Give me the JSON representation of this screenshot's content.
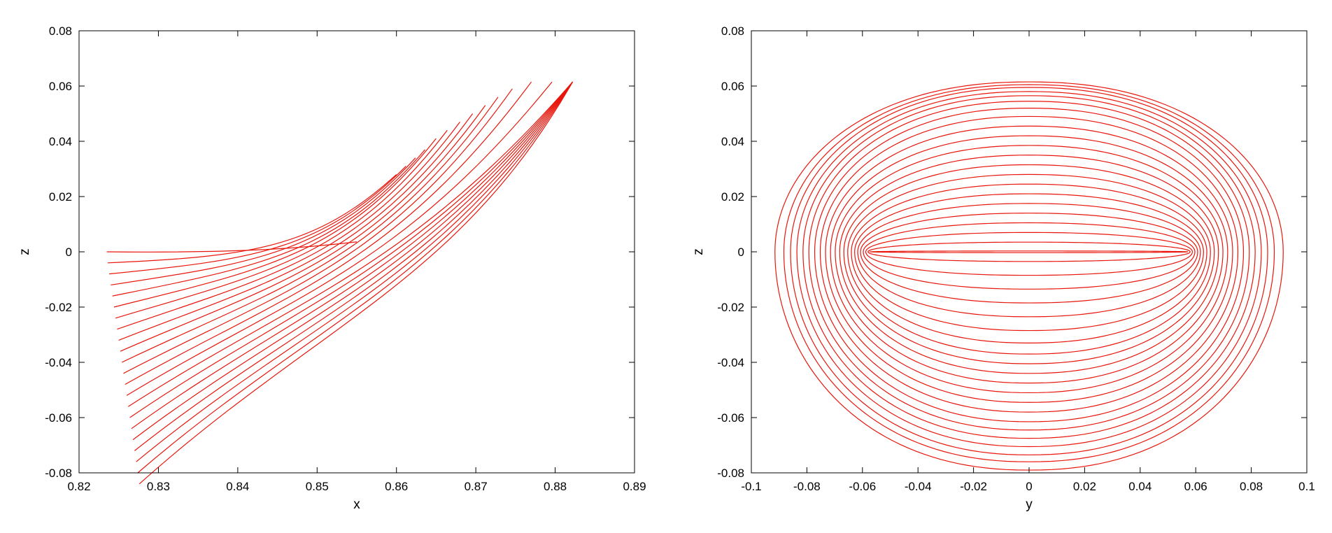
{
  "chart_data": [
    {
      "type": "line",
      "xlabel": "x",
      "ylabel": "z",
      "xlim": [
        0.82,
        0.89
      ],
      "ylim": [
        -0.08,
        0.08
      ],
      "xticks": [
        "0.82",
        "0.83",
        "0.84",
        "0.85",
        "0.86",
        "0.87",
        "0.88",
        "0.89"
      ],
      "yticks": [
        "-0.08",
        "-0.06",
        "-0.04",
        "-0.02",
        "0",
        "0.02",
        "0.04",
        "0.06",
        "0.08"
      ],
      "line_color": "#e8160c",
      "grid": false,
      "n_series": 22,
      "series_family": "root end point (x, z) to tip end point (x, z), all curves sweeping through about (0.8448, 0)",
      "start_x": [
        0.8235,
        0.8236,
        0.8238,
        0.824,
        0.8242,
        0.8244,
        0.8246,
        0.8248,
        0.825,
        0.8252,
        0.8254,
        0.8256,
        0.8258,
        0.826,
        0.8262,
        0.8264,
        0.8266,
        0.8268,
        0.827,
        0.8272,
        0.8274,
        0.8276
      ],
      "start_z": [
        0.0,
        -0.004,
        -0.008,
        -0.012,
        -0.016,
        -0.02,
        -0.024,
        -0.028,
        -0.032,
        -0.036,
        -0.04,
        -0.044,
        -0.048,
        -0.052,
        -0.056,
        -0.06,
        -0.064,
        -0.068,
        -0.072,
        -0.076,
        -0.08,
        -0.084
      ],
      "end_x": [
        0.855,
        0.86,
        0.8612,
        0.8624,
        0.8636,
        0.865,
        0.8664,
        0.868,
        0.8696,
        0.8712,
        0.8728,
        0.8746,
        0.877,
        0.8796,
        0.8822,
        0.8822,
        0.8822,
        0.8822,
        0.8822,
        0.8822,
        0.8822,
        0.8822
      ],
      "end_z": [
        0.0036,
        0.028,
        0.031,
        0.034,
        0.037,
        0.041,
        0.044,
        0.047,
        0.05,
        0.053,
        0.056,
        0.059,
        0.0615,
        0.0615,
        0.0615,
        0.0615,
        0.0615,
        0.0615,
        0.0615,
        0.0615,
        0.0615,
        0.0615
      ]
    },
    {
      "type": "line",
      "xlabel": "y",
      "ylabel": "z",
      "xlim": [
        -0.1,
        0.1
      ],
      "ylim": [
        -0.08,
        0.08
      ],
      "xticks": [
        "-0.1",
        "-0.08",
        "-0.06",
        "-0.04",
        "-0.02",
        "0",
        "0.02",
        "0.04",
        "0.06",
        "0.08",
        "0.1"
      ],
      "yticks": [
        "-0.08",
        "-0.06",
        "-0.04",
        "-0.02",
        "0",
        "0.02",
        "0.04",
        "0.06",
        "0.08"
      ],
      "line_color": "#e8160c",
      "grid": false,
      "n_series": 22,
      "series_family": "closed loops centered on y = 0",
      "half_width": [
        0.0572,
        0.058,
        0.0588,
        0.0597,
        0.0607,
        0.0617,
        0.0628,
        0.064,
        0.0653,
        0.0667,
        0.0682,
        0.0698,
        0.0715,
        0.0733,
        0.0752,
        0.0772,
        0.0793,
        0.0814,
        0.0836,
        0.0859,
        0.0883,
        0.0915
      ],
      "top_z": [
        0.0003,
        0.0035,
        0.007,
        0.0105,
        0.014,
        0.0175,
        0.021,
        0.0245,
        0.028,
        0.0315,
        0.035,
        0.0385,
        0.042,
        0.0455,
        0.049,
        0.052,
        0.0545,
        0.0565,
        0.058,
        0.0595,
        0.0605,
        0.0615
      ],
      "bottom_z": [
        -0.0003,
        -0.0035,
        -0.0085,
        -0.0135,
        -0.0185,
        -0.0235,
        -0.0285,
        -0.033,
        -0.037,
        -0.0405,
        -0.044,
        -0.0475,
        -0.051,
        -0.0545,
        -0.058,
        -0.0615,
        -0.0645,
        -0.0675,
        -0.0705,
        -0.0735,
        -0.076,
        -0.079
      ]
    }
  ]
}
